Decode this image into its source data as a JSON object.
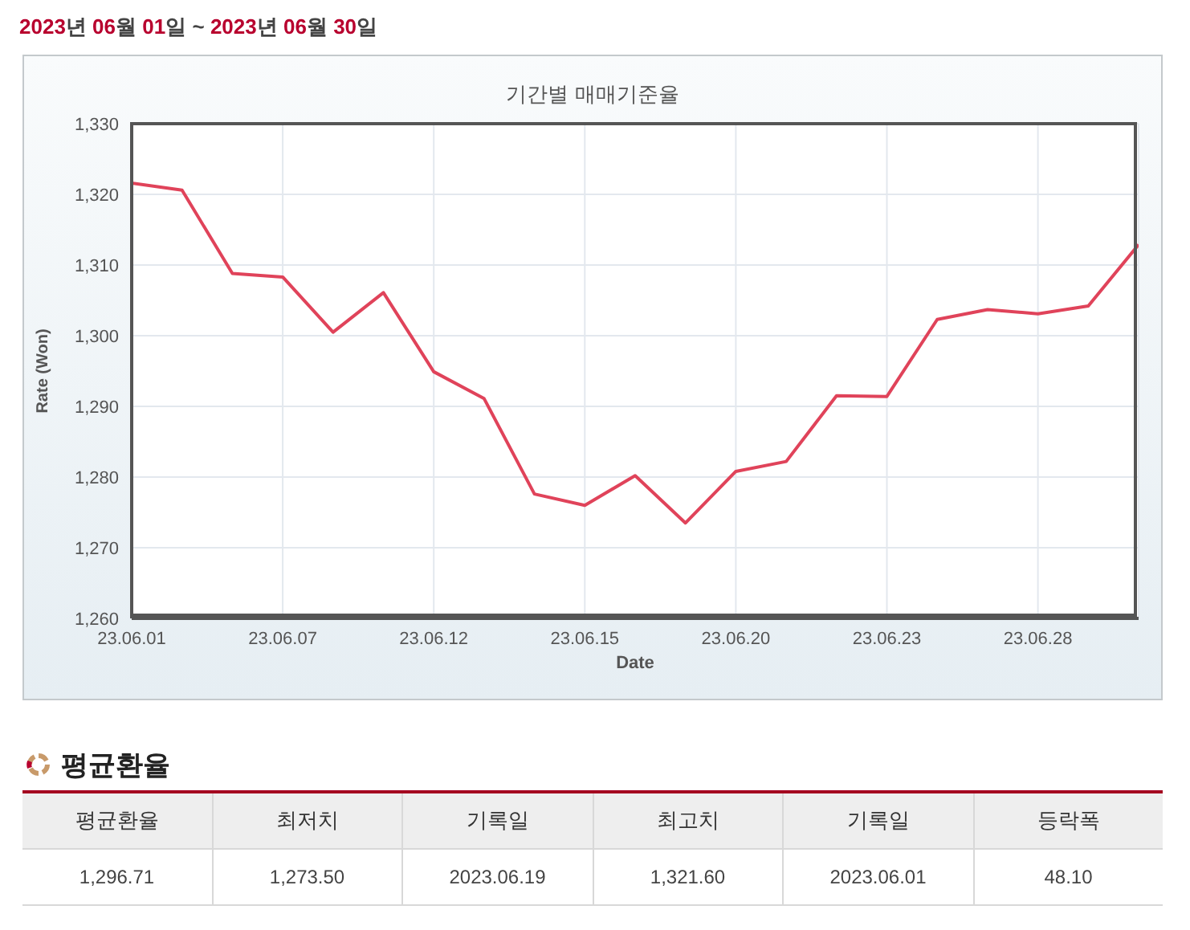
{
  "chart_data": [
    {
      "type": "line",
      "title": "기간별 매매기준율",
      "subtitle": "2023년 06월 01일 ~ 2023년 06월 30일",
      "xlabel": "Date",
      "ylabel": "Rate (Won)",
      "categories": [
        "23.06.01",
        null,
        null,
        "23.06.07",
        null,
        null,
        "23.06.12",
        null,
        null,
        "23.06.15",
        null,
        null,
        "23.06.20",
        null,
        null,
        "23.06.23",
        null,
        null,
        "23.06.28",
        null,
        null
      ],
      "series": [
        {
          "color": "#e0435a",
          "values": [
            1321.6,
            1320.6,
            1308.8,
            1308.3,
            1300.5,
            1306.1,
            1294.9,
            1291.1,
            1277.6,
            1276.0,
            1280.2,
            1273.5,
            1280.8,
            1282.2,
            1291.5,
            1291.4,
            1302.3,
            1303.7,
            1303.1,
            1304.2,
            1312.9
          ]
        }
      ],
      "ylim": [
        1260,
        1330
      ],
      "yticks": [
        {
          "value": 1260,
          "label": "1,260"
        },
        {
          "value": 1270,
          "label": "1,270"
        },
        {
          "value": 1280,
          "label": "1,280"
        },
        {
          "value": 1290,
          "label": "1,290"
        },
        {
          "value": 1300,
          "label": "1,300"
        },
        {
          "value": 1310,
          "label": "1,310"
        },
        {
          "value": 1320,
          "label": "1,320"
        },
        {
          "value": 1330,
          "label": "1,330"
        }
      ],
      "grid": true,
      "marker": "none",
      "line_style": "solid"
    },
    {
      "type": "other",
      "title": "평균환율",
      "categories": [
        "평균환율",
        "최저치",
        "기록일",
        "최고치",
        "기록일",
        "등락폭"
      ],
      "value_labels": [
        "1,296.71",
        "1,273.50",
        "2023.06.19",
        "1,321.60",
        "2023.06.01",
        "48.10"
      ]
    }
  ]
}
